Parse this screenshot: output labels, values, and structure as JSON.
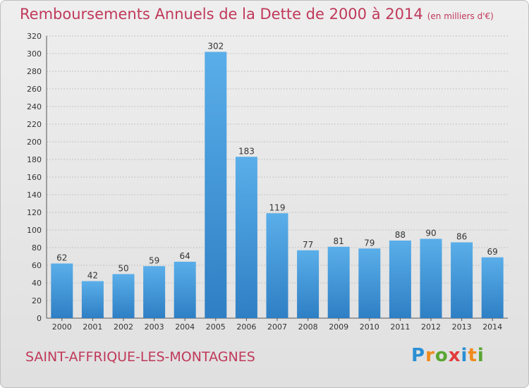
{
  "header": {
    "title": "Remboursements Annuels de la Dette de 2000 à 2014",
    "subtitle": "(en milliers d'€)"
  },
  "footer": {
    "commune": "SAINT-AFFRIQUE-LES-MONTAGNES",
    "logo_parts": [
      "P",
      "r",
      "o",
      "x",
      "i",
      "t",
      "i"
    ],
    "logo_colors": [
      "#2a8fd4",
      "#f08a1c",
      "#5aa532",
      "#e23b3b",
      "#2a8fd4",
      "#f08a1c",
      "#5aa532"
    ]
  },
  "colors": {
    "bar_top": "#5aaee9",
    "bar_bottom": "#2e7fc4",
    "accent": "#c0395a"
  },
  "chart_data": {
    "type": "bar",
    "title": "Remboursements Annuels de la Dette de 2000 à 2014",
    "subtitle": "(en milliers d'€)",
    "categories": [
      "2000",
      "2001",
      "2002",
      "2003",
      "2004",
      "2005",
      "2006",
      "2007",
      "2008",
      "2009",
      "2010",
      "2011",
      "2012",
      "2013",
      "2014"
    ],
    "values": [
      62,
      42,
      50,
      59,
      64,
      302,
      183,
      119,
      77,
      81,
      79,
      88,
      90,
      86,
      69
    ],
    "ylim": [
      0,
      320
    ],
    "yticks": [
      0,
      20,
      40,
      60,
      80,
      100,
      120,
      140,
      160,
      180,
      200,
      220,
      240,
      260,
      280,
      300,
      320
    ],
    "grid": true,
    "xlabel": "",
    "ylabel": ""
  }
}
